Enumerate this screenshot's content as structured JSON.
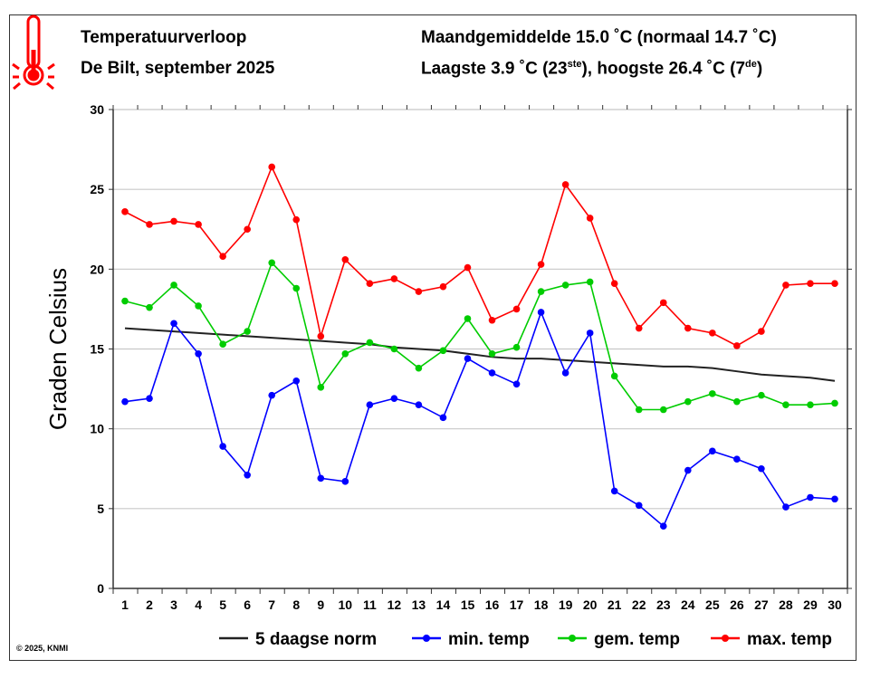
{
  "header": {
    "title": "Temperatuurverloop",
    "subtitle": "De Bilt, september 2025",
    "stats_line1": "Maandgemiddelde 15.0 ˚C (normaal 14.7 ˚C)",
    "stats_line2_pre": "Laagste 3.9 ˚C (23",
    "stats_line2_sup1": "ste",
    "stats_line2_mid": "), hoogste 26.4 ˚C (7",
    "stats_line2_sup2": "de",
    "stats_line2_post": ")",
    "icon": "thermometer-icon"
  },
  "copyright": "© 2025, KNMI",
  "chart_data": {
    "type": "line",
    "title": "Temperatuurverloop",
    "xlabel": "",
    "ylabel": "Graden Celsius",
    "ylim": [
      0,
      30
    ],
    "yticks": [
      0,
      5,
      10,
      15,
      20,
      25,
      30
    ],
    "grid": true,
    "legend_position": "bottom",
    "x": [
      1,
      2,
      3,
      4,
      5,
      6,
      7,
      8,
      9,
      10,
      11,
      12,
      13,
      14,
      15,
      16,
      17,
      18,
      19,
      20,
      21,
      22,
      23,
      24,
      25,
      26,
      27,
      28,
      29,
      30
    ],
    "series": [
      {
        "name": "5 daagse norm",
        "color": "#222222",
        "markers": false,
        "values": [
          16.3,
          16.2,
          16.1,
          16.0,
          15.9,
          15.8,
          15.7,
          15.6,
          15.5,
          15.4,
          15.3,
          15.1,
          15.0,
          14.9,
          14.7,
          14.5,
          14.4,
          14.4,
          14.3,
          14.2,
          14.1,
          14.0,
          13.9,
          13.9,
          13.8,
          13.6,
          13.4,
          13.3,
          13.2,
          13.0
        ]
      },
      {
        "name": "min. temp",
        "color": "#0000ff",
        "markers": true,
        "values": [
          11.7,
          11.9,
          16.6,
          14.7,
          8.9,
          7.1,
          12.1,
          13.0,
          6.9,
          6.7,
          11.5,
          11.9,
          11.5,
          10.7,
          14.4,
          13.5,
          12.8,
          17.3,
          13.5,
          16.0,
          6.1,
          5.2,
          3.9,
          7.4,
          8.6,
          8.1,
          7.5,
          5.1,
          5.7,
          5.6
        ]
      },
      {
        "name": "gem. temp",
        "color": "#00cc00",
        "markers": true,
        "values": [
          18.0,
          17.6,
          19.0,
          17.7,
          15.3,
          16.1,
          20.4,
          18.8,
          12.6,
          14.7,
          15.4,
          15.0,
          13.8,
          14.9,
          16.9,
          14.7,
          15.1,
          18.6,
          19.0,
          19.2,
          13.3,
          11.2,
          11.2,
          11.7,
          12.2,
          11.7,
          12.1,
          11.5,
          11.5,
          11.6
        ]
      },
      {
        "name": "max. temp",
        "color": "#ff0000",
        "markers": true,
        "values": [
          23.6,
          22.8,
          23.0,
          22.8,
          20.8,
          22.5,
          26.4,
          23.1,
          15.8,
          20.6,
          19.1,
          19.4,
          18.6,
          18.9,
          20.1,
          16.8,
          17.5,
          20.3,
          25.3,
          23.2,
          19.1,
          16.3,
          17.9,
          16.3,
          16.0,
          15.2,
          16.1,
          19.0,
          19.1,
          19.1
        ]
      }
    ]
  }
}
